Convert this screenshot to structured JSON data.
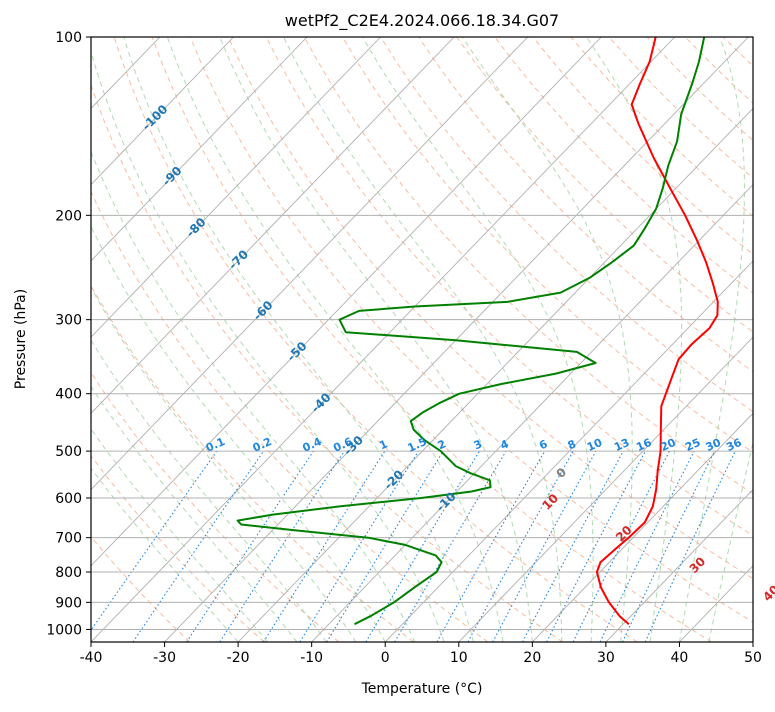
{
  "chart_data": {
    "type": "line",
    "title": "wetPf2_C2E4.2024.066.18.34.G07",
    "xlabel": "Temperature (°C)",
    "ylabel": "Pressure (hPa)",
    "xlim": [
      -40,
      50
    ],
    "ylim": [
      1050,
      100
    ],
    "y_scale": "log",
    "grid": true,
    "x_ticks": [
      "-40",
      "-30",
      "-20",
      "-10",
      "0",
      "10",
      "20",
      "30",
      "40",
      "50"
    ],
    "y_ticks": [
      "100",
      "200",
      "300",
      "400",
      "500",
      "600",
      "700",
      "800",
      "900",
      "1000"
    ],
    "colors": {
      "temperature": "#ff0000",
      "dewpoint": "#008000",
      "isotherm_labels": "#1f77b4",
      "mixing_ratio": "#1f86e0",
      "dry_adiabat_labels": "#d62728",
      "moist_adiabat_label": "#808080"
    },
    "series": [
      {
        "color": "#ff0000",
        "points": [
          {
            "p": 980,
            "t": 30.8
          },
          {
            "p": 950,
            "t": 28.5
          },
          {
            "p": 900,
            "t": 25.2
          },
          {
            "p": 850,
            "t": 22.2
          },
          {
            "p": 800,
            "t": 19.6
          },
          {
            "p": 770,
            "t": 18.8
          },
          {
            "p": 730,
            "t": 19.1
          },
          {
            "p": 700,
            "t": 19.4
          },
          {
            "p": 660,
            "t": 19.6
          },
          {
            "p": 620,
            "t": 18.6
          },
          {
            "p": 580,
            "t": 16.8
          },
          {
            "p": 540,
            "t": 14.6
          },
          {
            "p": 500,
            "t": 12.4
          },
          {
            "p": 460,
            "t": 9.6
          },
          {
            "p": 420,
            "t": 6.6
          },
          {
            "p": 380,
            "t": 4.5
          },
          {
            "p": 350,
            "t": 2.8
          },
          {
            "p": 330,
            "t": 2.6
          },
          {
            "p": 310,
            "t": 2.9
          },
          {
            "p": 295,
            "t": 2.3
          },
          {
            "p": 280,
            "t": 0.6
          },
          {
            "p": 260,
            "t": -2.6
          },
          {
            "p": 240,
            "t": -6.2
          },
          {
            "p": 220,
            "t": -10.4
          },
          {
            "p": 200,
            "t": -15.2
          },
          {
            "p": 180,
            "t": -20.8
          },
          {
            "p": 160,
            "t": -27.0
          },
          {
            "p": 140,
            "t": -33.6
          },
          {
            "p": 130,
            "t": -37.0
          },
          {
            "p": 120,
            "t": -38.6
          },
          {
            "p": 110,
            "t": -40.2
          },
          {
            "p": 100,
            "t": -42.6
          }
        ]
      },
      {
        "color": "#008000",
        "points": [
          {
            "p": 980,
            "t": -6.5
          },
          {
            "p": 950,
            "t": -5.4
          },
          {
            "p": 900,
            "t": -4.0
          },
          {
            "p": 850,
            "t": -3.2
          },
          {
            "p": 800,
            "t": -2.2
          },
          {
            "p": 770,
            "t": -2.8
          },
          {
            "p": 750,
            "t": -4.5
          },
          {
            "p": 720,
            "t": -10.0
          },
          {
            "p": 700,
            "t": -16.0
          },
          {
            "p": 680,
            "t": -27.0
          },
          {
            "p": 665,
            "t": -35.0
          },
          {
            "p": 655,
            "t": -36.0
          },
          {
            "p": 640,
            "t": -32.0
          },
          {
            "p": 620,
            "t": -24.0
          },
          {
            "p": 600,
            "t": -14.0
          },
          {
            "p": 585,
            "t": -8.0
          },
          {
            "p": 575,
            "t": -6.0
          },
          {
            "p": 560,
            "t": -7.0
          },
          {
            "p": 545,
            "t": -10.5
          },
          {
            "p": 530,
            "t": -13.5
          },
          {
            "p": 500,
            "t": -17.5
          },
          {
            "p": 480,
            "t": -21.0
          },
          {
            "p": 460,
            "t": -24.0
          },
          {
            "p": 445,
            "t": -25.5
          },
          {
            "p": 430,
            "t": -25.0
          },
          {
            "p": 415,
            "t": -24.0
          },
          {
            "p": 400,
            "t": -22.5
          },
          {
            "p": 385,
            "t": -18.0
          },
          {
            "p": 370,
            "t": -12.0
          },
          {
            "p": 355,
            "t": -8.0
          },
          {
            "p": 340,
            "t": -12.0
          },
          {
            "p": 325,
            "t": -30.0
          },
          {
            "p": 315,
            "t": -46.0
          },
          {
            "p": 300,
            "t": -48.5
          },
          {
            "p": 290,
            "t": -47.0
          },
          {
            "p": 285,
            "t": -40.0
          },
          {
            "p": 280,
            "t": -28.0
          },
          {
            "p": 270,
            "t": -22.0
          },
          {
            "p": 255,
            "t": -20.0
          },
          {
            "p": 240,
            "t": -19.0
          },
          {
            "p": 225,
            "t": -18.2
          },
          {
            "p": 210,
            "t": -19.0
          },
          {
            "p": 195,
            "t": -20.0
          },
          {
            "p": 180,
            "t": -21.8
          },
          {
            "p": 165,
            "t": -24.0
          },
          {
            "p": 150,
            "t": -26.0
          },
          {
            "p": 135,
            "t": -29.0
          },
          {
            "p": 120,
            "t": -31.5
          },
          {
            "p": 110,
            "t": -33.5
          },
          {
            "p": 100,
            "t": -36.0
          }
        ]
      }
    ],
    "isotherm_labels": [
      "-100",
      "-90",
      "-80",
      "-70",
      "-60",
      "-50",
      "-40",
      "-30",
      "-20",
      "-10"
    ],
    "mixing_ratio_labels": [
      "0.1",
      "0.2",
      "0.4",
      "0.6",
      "1",
      "1.5",
      "2",
      "3",
      "4",
      "6",
      "8",
      "10",
      "13",
      "16",
      "20",
      "25",
      "30",
      "36"
    ],
    "dry_adiabat_labels": [
      "10",
      "20",
      "30",
      "40"
    ],
    "moist_adiabat_label": "0"
  }
}
